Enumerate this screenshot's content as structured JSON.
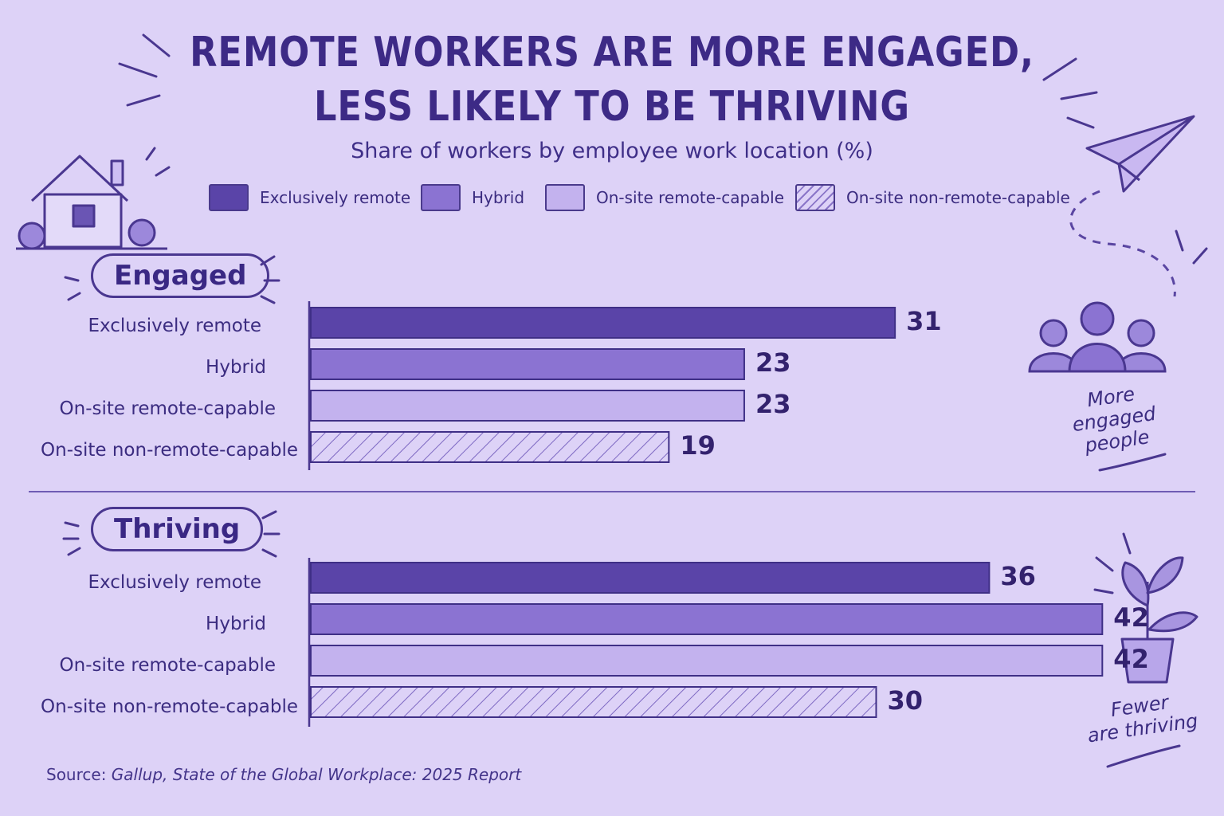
{
  "title_line1": "REMOTE WORKERS ARE MORE ENGAGED,",
  "title_line2": "LESS LIKELY TO BE THRIVING",
  "subtitle": "Share of workers by employee work location (%)",
  "legend": [
    {
      "label": "Exclusively remote",
      "color": "#5a44a8",
      "pattern": "solid"
    },
    {
      "label": "Hybrid",
      "color": "#8b73d2",
      "pattern": "solid"
    },
    {
      "label": "On-site remote-capable",
      "color": "#c3b2ee",
      "pattern": "solid"
    },
    {
      "label": "On-site non-remote-capable",
      "color": "#ddd2f7",
      "pattern": "hatch"
    }
  ],
  "source_prefix": "Source:",
  "source_text": "Gallup, State of the Global Workplace: 2025 Report",
  "notes": {
    "engaged_line1": "More",
    "engaged_line2": "engaged",
    "engaged_line3": "people",
    "thriving_line1": "Fewer",
    "thriving_line2": "are thriving"
  },
  "chart_data": [
    {
      "type": "bar",
      "orientation": "horizontal",
      "title": "Engaged",
      "categories": [
        "Exclusively remote",
        "Hybrid",
        "On-site remote-capable",
        "On-site non-remote-capable"
      ],
      "values": [
        31,
        23,
        23,
        19
      ],
      "colors": [
        "#5a44a8",
        "#8b73d2",
        "#c3b2ee",
        "#ddd2f7"
      ],
      "xlim": [
        0,
        50
      ],
      "grid": false,
      "legend": "top"
    },
    {
      "type": "bar",
      "orientation": "horizontal",
      "title": "Thriving",
      "categories": [
        "Exclusively remote",
        "Hybrid",
        "On-site remote-capable",
        "On-site non-remote-capable"
      ],
      "values": [
        36,
        42,
        42,
        30
      ],
      "colors": [
        "#5a44a8",
        "#8b73d2",
        "#c3b2ee",
        "#ddd2f7"
      ],
      "xlim": [
        0,
        50
      ],
      "grid": false,
      "legend": "top"
    }
  ]
}
